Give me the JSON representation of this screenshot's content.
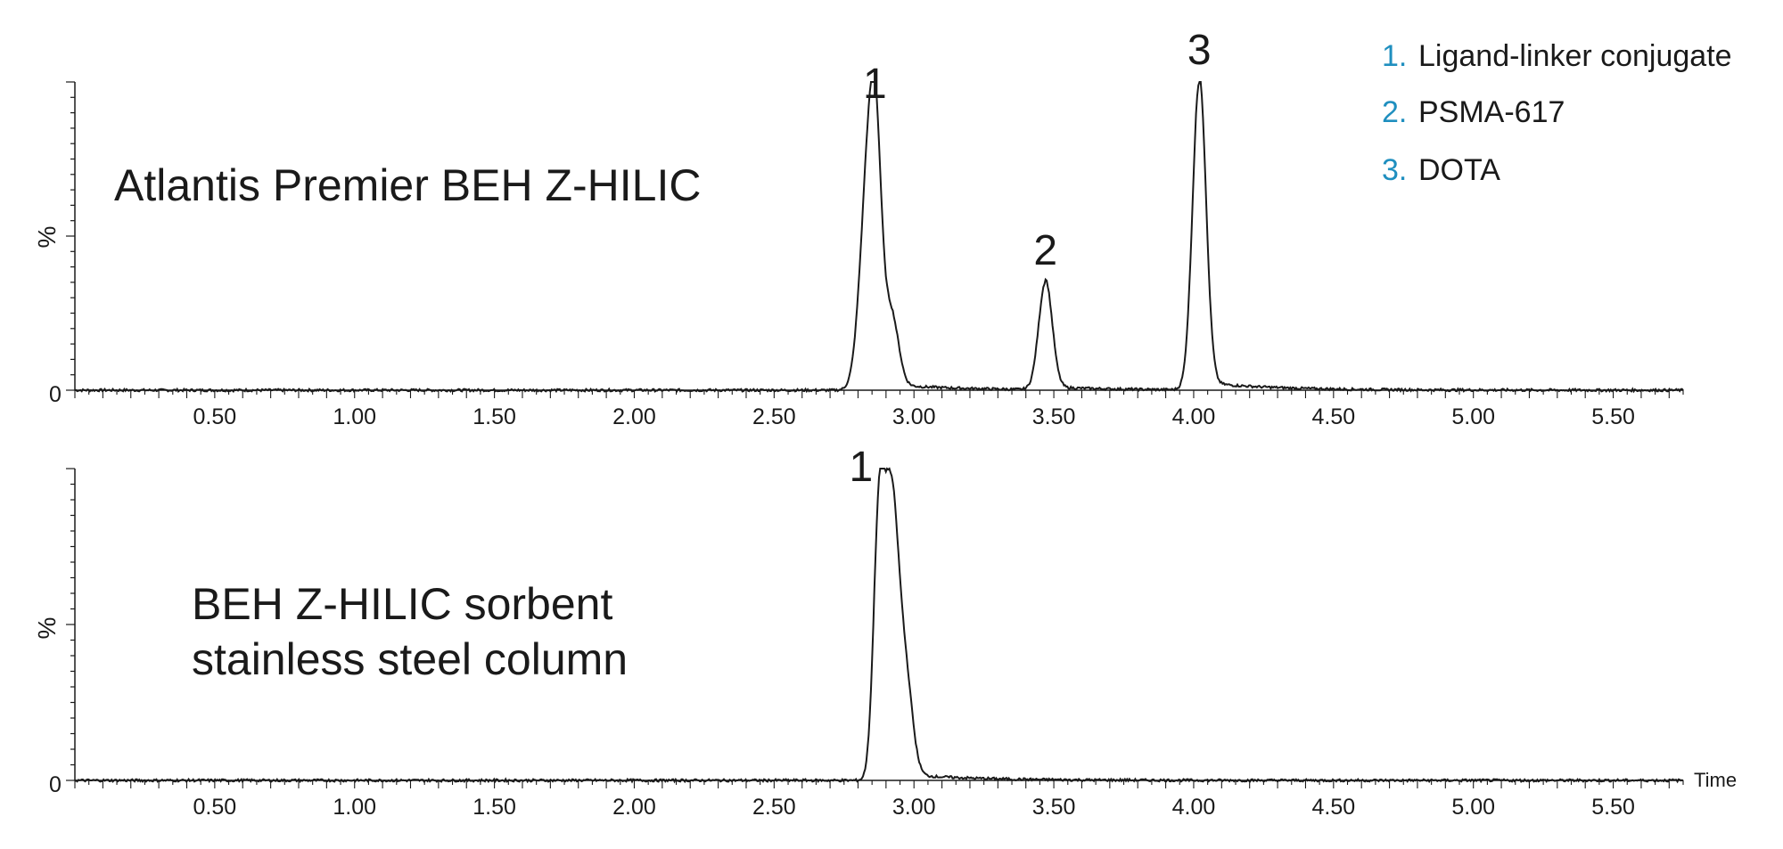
{
  "legend": [
    {
      "num": "1.",
      "label": "Ligand-linker conjugate"
    },
    {
      "num": "2.",
      "label": "PSMA-617"
    },
    {
      "num": "3.",
      "label": "DOTA"
    }
  ],
  "colors": {
    "trace": "#1a1a1a",
    "legend_number": "#1f8fbf",
    "axis": "#1a1a1a"
  },
  "chart_data": [
    {
      "type": "line",
      "title": "Atlantis Premier BEH Z-HILIC",
      "xlabel": "",
      "ylabel": "%",
      "xlim": [
        0,
        5.75
      ],
      "ylim": [
        0,
        100
      ],
      "x_ticks": [
        "0.50",
        "1.00",
        "1.50",
        "2.00",
        "2.50",
        "3.00",
        "3.50",
        "4.00",
        "4.50",
        "5.00",
        "5.50"
      ],
      "y_ticks": [
        "0"
      ],
      "grid": false,
      "peaks": [
        {
          "label": "1",
          "rt": 2.86,
          "height": 89
        },
        {
          "label": "2",
          "rt": 3.47,
          "height": 35
        },
        {
          "label": "3",
          "rt": 4.02,
          "height": 100
        }
      ]
    },
    {
      "type": "line",
      "title": "BEH Z-HILIC sorbent\nstainless steel column",
      "title_lines": [
        "BEH Z-HILIC sorbent",
        "stainless steel column"
      ],
      "xlabel": "Time",
      "ylabel": "%",
      "xlim": [
        0,
        5.75
      ],
      "ylim": [
        0,
        100
      ],
      "x_ticks": [
        "0.50",
        "1.00",
        "1.50",
        "2.00",
        "2.50",
        "3.00",
        "3.50",
        "4.00",
        "4.50",
        "5.00",
        "5.50"
      ],
      "y_ticks": [
        "0"
      ],
      "grid": false,
      "peaks": [
        {
          "label": "1",
          "rt": 2.9,
          "height": 100
        }
      ]
    }
  ]
}
